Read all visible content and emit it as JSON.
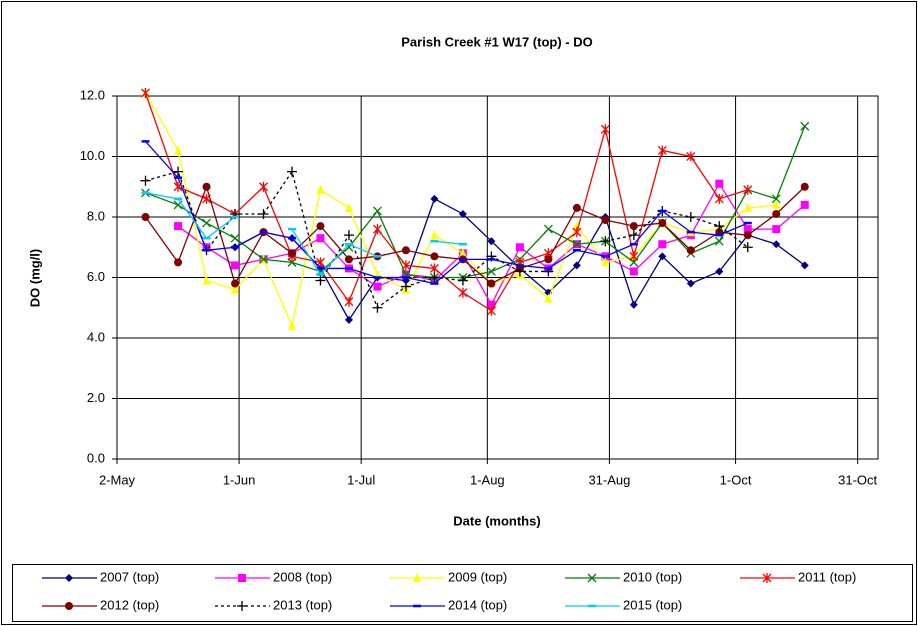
{
  "chart_data": {
    "type": "line",
    "title": "Parish Creek #1 W17 (top) - DO",
    "x_label": "Date (months)",
    "y_label": "DO (mg/l)",
    "x": [
      129,
      137,
      144,
      151,
      158,
      165,
      172,
      179,
      186,
      193,
      200,
      207,
      214,
      221,
      228,
      235,
      242,
      249,
      256,
      263,
      270,
      277,
      284,
      291
    ],
    "xlim": [
      122,
      309
    ],
    "xticks": [
      {
        "value": 122,
        "label": "2-May"
      },
      {
        "value": 152,
        "label": "1-Jun"
      },
      {
        "value": 182,
        "label": "1-Jul"
      },
      {
        "value": 213,
        "label": "1-Aug"
      },
      {
        "value": 243,
        "label": "31-Aug"
      },
      {
        "value": 274,
        "label": "1-Oct"
      },
      {
        "value": 304,
        "label": "31-Oct"
      }
    ],
    "ylim": [
      0,
      12
    ],
    "yticks": [
      {
        "value": 0,
        "label": "0.0"
      },
      {
        "value": 2,
        "label": "2.0"
      },
      {
        "value": 4,
        "label": "4.0"
      },
      {
        "value": 6,
        "label": "6.0"
      },
      {
        "value": 8,
        "label": "8.0"
      },
      {
        "value": 10,
        "label": "10.0"
      },
      {
        "value": 12,
        "label": "12.0"
      }
    ],
    "grid": true,
    "legend": "bottom",
    "series": [
      {
        "name": "2007 (top)",
        "color": "#000080",
        "marker": "diamond",
        "dash": "solid",
        "values": [
          null,
          null,
          null,
          7.0,
          7.5,
          7.3,
          6.3,
          4.6,
          6.0,
          5.9,
          8.6,
          8.1,
          7.2,
          6.3,
          5.5,
          6.4,
          8.0,
          5.1,
          6.7,
          5.8,
          6.2,
          7.4,
          7.1,
          6.4
        ]
      },
      {
        "name": "2008 (top)",
        "color": "#ff00ff",
        "marker": "square",
        "dash": "solid",
        "values": [
          null,
          7.7,
          7.0,
          6.4,
          6.6,
          6.8,
          7.3,
          6.3,
          5.7,
          6.1,
          5.9,
          6.8,
          5.1,
          7.0,
          6.3,
          7.1,
          6.7,
          6.2,
          7.1,
          7.4,
          9.1,
          7.6,
          7.6,
          8.4
        ]
      },
      {
        "name": "2009 (top)",
        "color": "#ffff00",
        "marker": "triangle",
        "dash": "solid",
        "values": [
          12.1,
          10.2,
          5.9,
          5.6,
          6.6,
          4.4,
          8.9,
          8.3,
          6.1,
          5.6,
          7.4,
          6.8,
          5.8,
          6.1,
          5.3,
          7.7,
          6.5,
          6.7,
          7.8,
          7.5,
          7.6,
          8.3,
          8.4,
          null
        ]
      },
      {
        "name": "2010 (top)",
        "color": "#008000",
        "marker": "x",
        "dash": "solid",
        "values": [
          8.8,
          8.4,
          7.8,
          7.3,
          6.6,
          6.5,
          6.2,
          7.0,
          8.2,
          6.1,
          6.0,
          6.0,
          6.2,
          6.6,
          7.6,
          7.1,
          7.2,
          6.5,
          7.8,
          6.8,
          7.2,
          8.9,
          8.6,
          11.0
        ]
      },
      {
        "name": "2011 (top)",
        "color": "#ff0000",
        "marker": "star",
        "dash": "solid",
        "values": [
          12.1,
          9.0,
          8.6,
          8.1,
          9.0,
          6.7,
          6.5,
          5.2,
          7.6,
          6.4,
          6.3,
          5.5,
          4.9,
          6.5,
          6.8,
          7.5,
          10.9,
          6.7,
          10.2,
          10.0,
          8.6,
          8.9,
          null,
          null
        ]
      },
      {
        "name": "2012 (top)",
        "color": "#800000",
        "marker": "circle",
        "dash": "solid",
        "values": [
          8.0,
          6.5,
          9.0,
          5.8,
          7.5,
          6.8,
          7.7,
          6.6,
          6.7,
          6.9,
          6.7,
          6.6,
          5.8,
          6.3,
          6.6,
          8.3,
          7.9,
          7.7,
          7.8,
          6.9,
          7.5,
          7.4,
          8.1,
          9.0
        ]
      },
      {
        "name": "2013 (top)",
        "color": "#000000",
        "marker": "plus",
        "dash": "dotted",
        "values": [
          9.2,
          9.5,
          6.9,
          8.1,
          8.1,
          9.5,
          5.9,
          7.4,
          5.0,
          5.7,
          6.0,
          5.9,
          6.7,
          6.2,
          6.2,
          null,
          7.2,
          7.4,
          8.2,
          8.0,
          7.7,
          7.0,
          null,
          null
        ]
      },
      {
        "name": "2014 (top)",
        "color": "#0000ff",
        "marker": "dash",
        "dash": "solid",
        "values": [
          10.5,
          9.3,
          6.9,
          7.0,
          7.5,
          7.3,
          6.3,
          6.3,
          6.0,
          6.0,
          5.8,
          6.6,
          6.6,
          6.4,
          6.3,
          6.9,
          6.7,
          7.1,
          8.2,
          7.5,
          7.4,
          7.8,
          null,
          null
        ]
      },
      {
        "name": "2015 (top)",
        "color": "#00ccff",
        "marker": "dash",
        "dash": "solid",
        "values": [
          8.8,
          8.6,
          7.3,
          8.0,
          null,
          7.6,
          6.1,
          7.1,
          6.7,
          null,
          7.2,
          7.1,
          null,
          null,
          null,
          null,
          null,
          null,
          null,
          null,
          null,
          null,
          null,
          null
        ]
      }
    ]
  }
}
